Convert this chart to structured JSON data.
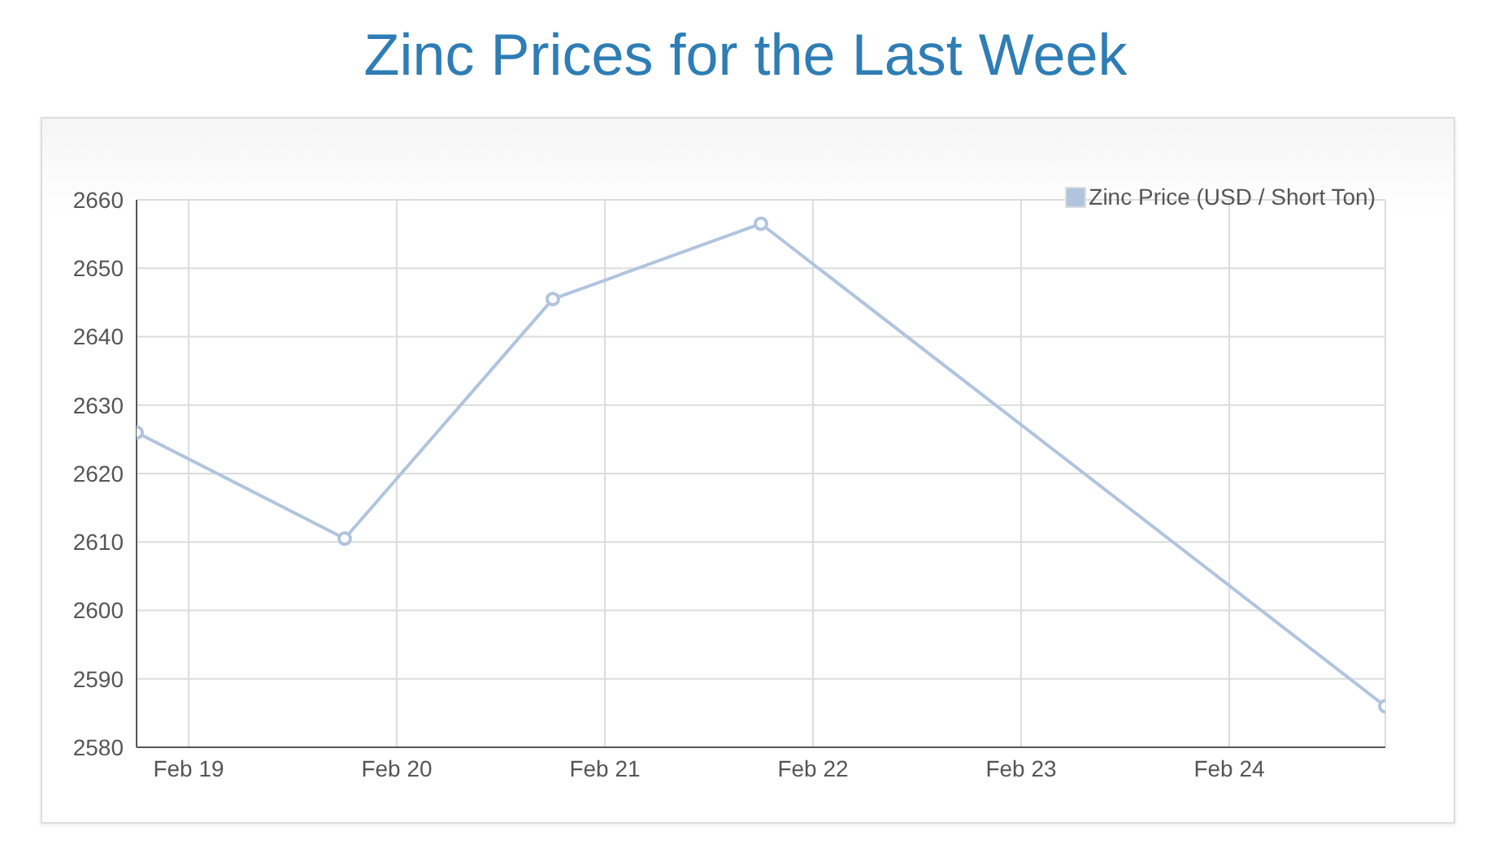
{
  "chart_data": {
    "type": "line",
    "title": "Zinc Prices for the Last Week",
    "x": [
      "--02-18T18:00",
      "--02-19T18:00",
      "--02-20T18:00",
      "--02-21T18:00",
      "--02-24T18:00"
    ],
    "series": [
      {
        "name": "Zinc Price (USD / Short Ton)",
        "color": "#b0c4de",
        "values": [
          2626,
          2610.5,
          2645.5,
          2656.5,
          2586
        ]
      }
    ],
    "xlim": [
      "--02-18T18:00",
      "--02-24T18:00"
    ],
    "xticks": [
      {
        "value": "--02-19",
        "label": "Feb 19"
      },
      {
        "value": "--02-20",
        "label": "Feb 20"
      },
      {
        "value": "--02-21",
        "label": "Feb 21"
      },
      {
        "value": "--02-22",
        "label": "Feb 22"
      },
      {
        "value": "--02-23",
        "label": "Feb 23"
      },
      {
        "value": "--02-24",
        "label": "Feb 24"
      }
    ],
    "ylim": [
      2580,
      2660
    ],
    "yticks": [
      2580,
      2590,
      2600,
      2610,
      2620,
      2630,
      2640,
      2650,
      2660
    ],
    "grid": true,
    "legend": "top right",
    "marker": "circle",
    "line_style": "solid"
  }
}
